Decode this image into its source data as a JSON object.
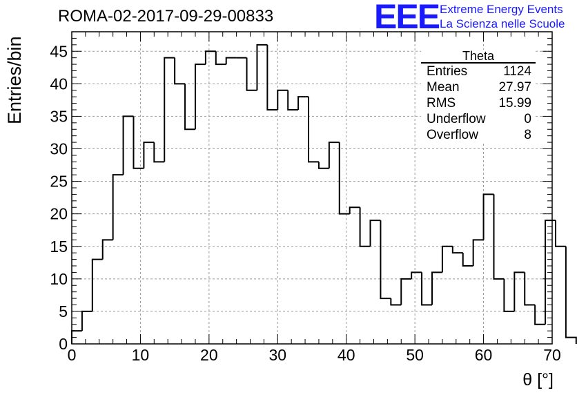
{
  "header": {
    "run_title": "ROMA-02-2017-09-29-00833",
    "logo_text": "EEE",
    "logo_line1": "Extreme Energy Events",
    "logo_line2": "La Scienza nelle Scuole",
    "logo_color": "#1a1aff"
  },
  "stats_box": {
    "title": "Theta",
    "rows": [
      {
        "label": "Entries",
        "value": "1124"
      },
      {
        "label": "Mean",
        "value": "27.97"
      },
      {
        "label": "RMS",
        "value": "15.99"
      },
      {
        "label": "Underflow",
        "value": "0"
      },
      {
        "label": "Overflow",
        "value": "8"
      }
    ]
  },
  "chart_data": {
    "type": "histogram",
    "title": "ROMA-02-2017-09-29-00833",
    "xlabel": "θ [°]",
    "ylabel": "Entries/bin",
    "xlim": [
      0,
      70
    ],
    "ylim": [
      0,
      48
    ],
    "grid": true,
    "bin_width": 1.5,
    "x_start": 0,
    "xticks": [
      0,
      10,
      20,
      30,
      40,
      50,
      60,
      70
    ],
    "yticks": [
      0,
      5,
      10,
      15,
      20,
      25,
      30,
      35,
      40,
      45
    ],
    "values": [
      2,
      5,
      13,
      16,
      26,
      35,
      27,
      31,
      28,
      44,
      40,
      33,
      43,
      45,
      43,
      44,
      44,
      39,
      46,
      36,
      39,
      36,
      38,
      28,
      27,
      31,
      20,
      21,
      15,
      19,
      7,
      6,
      10,
      11,
      6,
      11,
      15,
      14,
      12,
      16,
      23,
      10,
      5,
      11,
      6,
      3,
      19,
      15,
      1
    ]
  }
}
